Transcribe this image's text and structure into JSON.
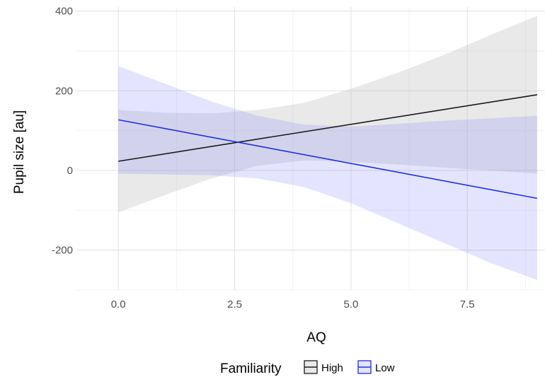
{
  "chart_data": {
    "type": "line",
    "xlabel": "AQ",
    "ylabel": "Pupil size [au]",
    "xlim": [
      -0.9,
      9.2
    ],
    "ylim": [
      -300,
      410
    ],
    "x_ticks": [
      0.0,
      2.5,
      5.0,
      7.5
    ],
    "x_tick_labels": [
      "0.0",
      "2.5",
      "5.0",
      "7.5"
    ],
    "y_ticks": [
      -200,
      0,
      200,
      400
    ],
    "y_tick_labels": [
      "-200",
      "0",
      "200",
      "400"
    ],
    "grid": true,
    "legend": {
      "title": "Familiarity",
      "placement": "bottom"
    },
    "series": [
      {
        "name": "High",
        "color": "#1a1a1a",
        "ribbon_color": "#bdbdbd",
        "ribbon_opacity": 0.33,
        "x": [
          0,
          9
        ],
        "y": [
          23,
          190
        ],
        "ribbon": {
          "x": [
            0,
            1,
            2,
            3,
            4,
            5,
            6,
            7,
            8,
            9
          ],
          "lower": [
            -105,
            -62,
            -20,
            12,
            25,
            22,
            15,
            7,
            0,
            -8
          ],
          "upper": [
            152,
            145,
            143,
            152,
            170,
            205,
            245,
            290,
            340,
            388
          ]
        }
      },
      {
        "name": "Low",
        "color": "#1f2ee0",
        "ribbon_color": "#6b6bff",
        "ribbon_opacity": 0.18,
        "x": [
          0,
          9
        ],
        "y": [
          127,
          -70
        ],
        "ribbon": {
          "x": [
            0,
            1,
            2,
            3,
            4,
            5,
            6,
            7,
            8,
            9
          ],
          "lower": [
            -8,
            -10,
            -12,
            -20,
            -42,
            -82,
            -132,
            -182,
            -232,
            -275
          ],
          "upper": [
            262,
            218,
            173,
            137,
            115,
            110,
            117,
            125,
            131,
            137
          ]
        }
      }
    ]
  }
}
